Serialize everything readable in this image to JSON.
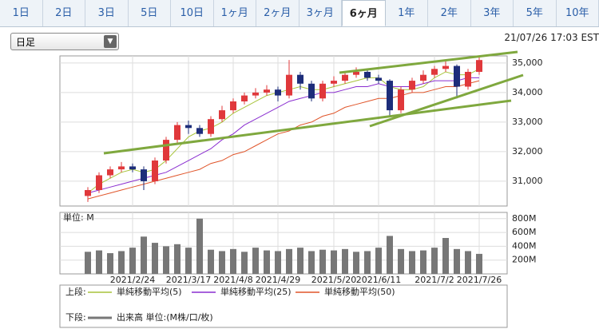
{
  "tabs": [
    "1日",
    "2日",
    "3日",
    "5日",
    "10日",
    "1ヶ月",
    "2ヶ月",
    "3ヶ月",
    "6ヶ月",
    "1年",
    "2年",
    "3年",
    "5年",
    "10年"
  ],
  "active_tab": 8,
  "dropdown": "日足",
  "timestamp": "21/07/26 17:03 EST",
  "chart_data": {
    "type": "candlestick",
    "categories": [
      null,
      null,
      null,
      null,
      "2021/2/24",
      null,
      null,
      null,
      null,
      "2021/3/17",
      null,
      null,
      null,
      "2021/4/8",
      null,
      null,
      null,
      "2021/4/29",
      null,
      null,
      null,
      null,
      "2021/5/20",
      null,
      null,
      null,
      "2021/6/11",
      null,
      null,
      null,
      null,
      "2021/7/2",
      null,
      null,
      null,
      "2021/7/26"
    ],
    "open": [
      30500,
      30700,
      31200,
      31400,
      31500,
      31400,
      31000,
      31700,
      32400,
      32900,
      32800,
      32600,
      33100,
      33400,
      33700,
      33900,
      34000,
      34100,
      33900,
      34600,
      34300,
      33800,
      34300,
      34400,
      34600,
      34700,
      34500,
      34400,
      33400,
      34100,
      34400,
      34600,
      34800,
      34900,
      34200,
      34700
    ],
    "high": [
      30800,
      31300,
      31500,
      31650,
      31600,
      31500,
      31800,
      32500,
      33000,
      33050,
      32900,
      33200,
      33550,
      33800,
      34000,
      34150,
      34250,
      34200,
      35100,
      34700,
      34400,
      34400,
      34550,
      34700,
      34850,
      34800,
      34600,
      34450,
      34200,
      34500,
      34750,
      34900,
      35050,
      34950,
      34800,
      35200
    ],
    "low": [
      30300,
      30600,
      31100,
      31300,
      31300,
      30700,
      30900,
      31600,
      32300,
      32600,
      32500,
      32500,
      33000,
      33300,
      33600,
      33800,
      33900,
      33700,
      33800,
      34100,
      33700,
      33700,
      34200,
      34300,
      34500,
      34400,
      34300,
      33200,
      33300,
      34000,
      34300,
      34500,
      34700,
      33800,
      34100,
      34600
    ],
    "close": [
      30700,
      31200,
      31400,
      31500,
      31400,
      31000,
      31700,
      32400,
      32900,
      32800,
      32600,
      33100,
      33400,
      33700,
      33900,
      34000,
      34100,
      33900,
      34600,
      34300,
      33800,
      34300,
      34400,
      34600,
      34700,
      34500,
      34400,
      33400,
      34100,
      34400,
      34600,
      34800,
      34900,
      34200,
      34700,
      35100
    ],
    "up_color": "#e0383b",
    "down_color": "#1d2d7a",
    "ylim": [
      30160,
      35240
    ],
    "yticks": [
      {
        "value": 31000,
        "label": "31,000"
      },
      {
        "value": 32000,
        "label": "32,000"
      },
      {
        "value": 33000,
        "label": "33,000"
      },
      {
        "value": 34000,
        "label": "34,000"
      },
      {
        "value": 35000,
        "label": "35,000"
      }
    ],
    "grid": true,
    "series": [
      {
        "name": "単純移動平均(5)",
        "color": "#a8c43a",
        "values": [
          30600,
          30900,
          31100,
          31300,
          31400,
          31300,
          31400,
          31700,
          32100,
          32500,
          32700,
          32800,
          33000,
          33300,
          33500,
          33700,
          33900,
          34000,
          34100,
          34200,
          34100,
          34100,
          34200,
          34300,
          34400,
          34500,
          34500,
          34200,
          34100,
          34100,
          34200,
          34500,
          34700,
          34600,
          34600,
          34800
        ]
      },
      {
        "name": "単純移動平均(25)",
        "color": "#8a2ed0",
        "values": [
          30600,
          30700,
          30800,
          30900,
          31000,
          31100,
          31200,
          31300,
          31500,
          31700,
          31900,
          32100,
          32400,
          32600,
          32900,
          33100,
          33300,
          33500,
          33700,
          33800,
          33900,
          34000,
          34000,
          34100,
          34200,
          34200,
          34300,
          34200,
          34200,
          34200,
          34300,
          34400,
          34400,
          34400,
          34500,
          34500
        ]
      },
      {
        "name": "単純移動平均(50)",
        "color": "#e0552a",
        "values": [
          30400,
          30500,
          30600,
          30700,
          30800,
          30900,
          31000,
          31100,
          31200,
          31300,
          31400,
          31600,
          31700,
          31900,
          32000,
          32200,
          32400,
          32600,
          32700,
          32900,
          33000,
          33200,
          33300,
          33500,
          33600,
          33700,
          33800,
          33800,
          33900,
          34000,
          34000,
          34100,
          34200,
          34200,
          34300,
          34400
        ]
      }
    ],
    "volume": {
      "type": "bar",
      "unit_label": "単位: M",
      "name": "出来高 単位:(M株/口/枚)",
      "color": "#777777",
      "values": [
        320,
        340,
        300,
        330,
        380,
        540,
        450,
        400,
        430,
        380,
        800,
        350,
        330,
        360,
        320,
        380,
        340,
        330,
        360,
        380,
        330,
        350,
        340,
        360,
        320,
        330,
        380,
        550,
        360,
        330,
        340,
        380,
        520,
        360,
        330,
        290
      ],
      "ylim": [
        0,
        890
      ],
      "yticks": [
        {
          "value": 200,
          "label": "200M"
        },
        {
          "value": 400,
          "label": "400M"
        },
        {
          "value": 600,
          "label": "600M"
        },
        {
          "value": 800,
          "label": "800M"
        }
      ]
    },
    "legend": {
      "upper_label": "上段:",
      "lower_label": "下段:"
    }
  }
}
